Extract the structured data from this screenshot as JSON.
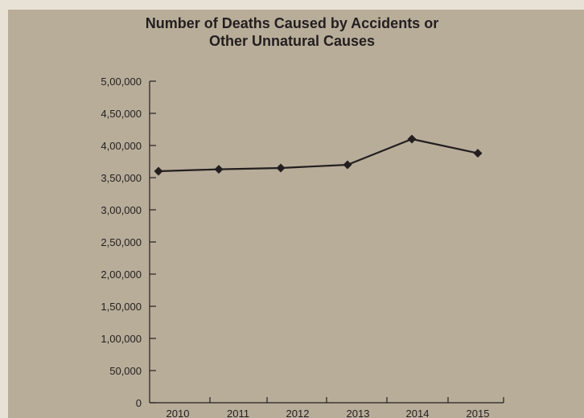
{
  "chart_data": {
    "type": "line",
    "title_lines": [
      "Number of Deaths Caused by Accidents or",
      "Other Unnatural Causes"
    ],
    "xlabel": "",
    "ylabel": "",
    "categories": [
      "2010",
      "2011",
      "2012",
      "2013",
      "2014",
      "2015"
    ],
    "series": [
      {
        "values": [
          360000,
          363000,
          365000,
          370000,
          410000,
          388000
        ]
      }
    ],
    "ylim": [
      0,
      500000
    ],
    "yticks": [
      0,
      50000,
      100000,
      150000,
      200000,
      250000,
      300000,
      350000,
      400000,
      450000,
      500000
    ],
    "ytick_labels": [
      "0",
      "50,000",
      "1,00,000",
      "1,50,000",
      "2,00,000",
      "2,50,000",
      "3,00,000",
      "3,50,000",
      "4,00,000",
      "4,50,000",
      "5,00,000"
    ],
    "grid": false,
    "legend": "none",
    "colors": {
      "line": "#231f20",
      "background": "#b8ad99",
      "page": "#e8e2d6"
    }
  }
}
